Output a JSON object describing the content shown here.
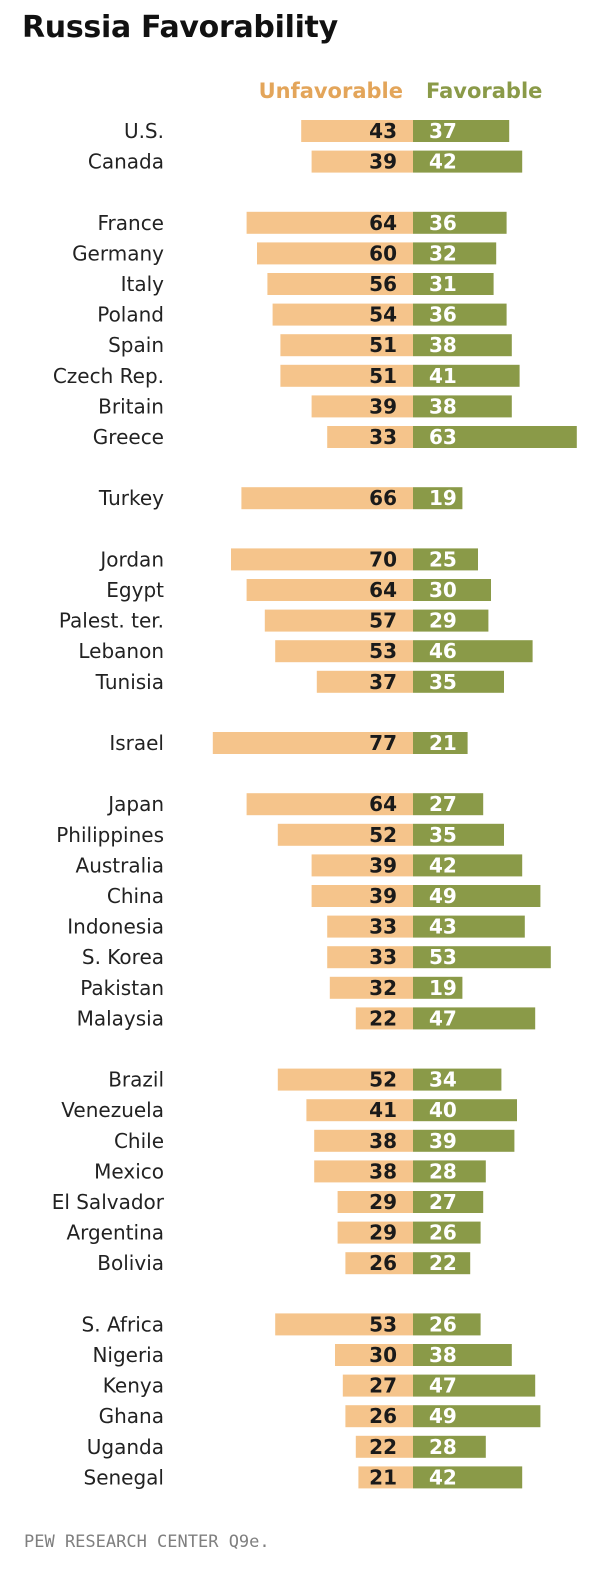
{
  "chart_data": {
    "type": "bar",
    "title": "Russia Favorability",
    "source": "PEW RESEARCH CENTER Q9e.",
    "colors": {
      "unfavorable": "#f5c48b",
      "favorable": "#8a9a48",
      "unfavorable_text": "#e3a55a",
      "favorable_text": "#8a9a48"
    },
    "series": [
      {
        "name": "Unfavorable"
      },
      {
        "name": "Favorable"
      }
    ],
    "groups": [
      {
        "rows": [
          {
            "country": "U.S.",
            "unfavorable": 43,
            "favorable": 37
          },
          {
            "country": "Canada",
            "unfavorable": 39,
            "favorable": 42
          }
        ]
      },
      {
        "rows": [
          {
            "country": "France",
            "unfavorable": 64,
            "favorable": 36
          },
          {
            "country": "Germany",
            "unfavorable": 60,
            "favorable": 32
          },
          {
            "country": "Italy",
            "unfavorable": 56,
            "favorable": 31
          },
          {
            "country": "Poland",
            "unfavorable": 54,
            "favorable": 36
          },
          {
            "country": "Spain",
            "unfavorable": 51,
            "favorable": 38
          },
          {
            "country": "Czech Rep.",
            "unfavorable": 51,
            "favorable": 41
          },
          {
            "country": "Britain",
            "unfavorable": 39,
            "favorable": 38
          },
          {
            "country": "Greece",
            "unfavorable": 33,
            "favorable": 63
          }
        ]
      },
      {
        "rows": [
          {
            "country": "Turkey",
            "unfavorable": 66,
            "favorable": 19
          }
        ]
      },
      {
        "rows": [
          {
            "country": "Jordan",
            "unfavorable": 70,
            "favorable": 25
          },
          {
            "country": "Egypt",
            "unfavorable": 64,
            "favorable": 30
          },
          {
            "country": "Palest. ter.",
            "unfavorable": 57,
            "favorable": 29
          },
          {
            "country": "Lebanon",
            "unfavorable": 53,
            "favorable": 46
          },
          {
            "country": "Tunisia",
            "unfavorable": 37,
            "favorable": 35
          }
        ]
      },
      {
        "rows": [
          {
            "country": "Israel",
            "unfavorable": 77,
            "favorable": 21
          }
        ]
      },
      {
        "rows": [
          {
            "country": "Japan",
            "unfavorable": 64,
            "favorable": 27
          },
          {
            "country": "Philippines",
            "unfavorable": 52,
            "favorable": 35
          },
          {
            "country": "Australia",
            "unfavorable": 39,
            "favorable": 42
          },
          {
            "country": "China",
            "unfavorable": 39,
            "favorable": 49
          },
          {
            "country": "Indonesia",
            "unfavorable": 33,
            "favorable": 43
          },
          {
            "country": "S. Korea",
            "unfavorable": 33,
            "favorable": 53
          },
          {
            "country": "Pakistan",
            "unfavorable": 32,
            "favorable": 19
          },
          {
            "country": "Malaysia",
            "unfavorable": 22,
            "favorable": 47
          }
        ]
      },
      {
        "rows": [
          {
            "country": "Brazil",
            "unfavorable": 52,
            "favorable": 34
          },
          {
            "country": "Venezuela",
            "unfavorable": 41,
            "favorable": 40
          },
          {
            "country": "Chile",
            "unfavorable": 38,
            "favorable": 39
          },
          {
            "country": "Mexico",
            "unfavorable": 38,
            "favorable": 28
          },
          {
            "country": "El Salvador",
            "unfavorable": 29,
            "favorable": 27
          },
          {
            "country": "Argentina",
            "unfavorable": 29,
            "favorable": 26
          },
          {
            "country": "Bolivia",
            "unfavorable": 26,
            "favorable": 22
          }
        ]
      },
      {
        "rows": [
          {
            "country": "S. Africa",
            "unfavorable": 53,
            "favorable": 26
          },
          {
            "country": "Nigeria",
            "unfavorable": 30,
            "favorable": 38
          },
          {
            "country": "Kenya",
            "unfavorable": 27,
            "favorable": 47
          },
          {
            "country": "Ghana",
            "unfavorable": 26,
            "favorable": 49
          },
          {
            "country": "Uganda",
            "unfavorable": 22,
            "favorable": 28
          },
          {
            "country": "Senegal",
            "unfavorable": 21,
            "favorable": 42
          }
        ]
      }
    ]
  }
}
